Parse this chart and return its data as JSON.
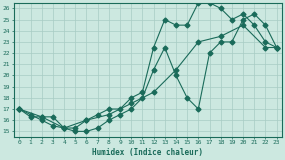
{
  "xlabel": "Humidex (Indice chaleur)",
  "bg_color": "#cce8e0",
  "line_color": "#1a6b5a",
  "grid_color": "#a8ccc4",
  "xlim": [
    -0.5,
    23.5
  ],
  "ylim": [
    14.5,
    26.5
  ],
  "xticks": [
    0,
    1,
    2,
    3,
    4,
    5,
    6,
    7,
    8,
    9,
    10,
    11,
    12,
    13,
    14,
    15,
    16,
    17,
    18,
    19,
    20,
    21,
    22,
    23
  ],
  "yticks": [
    15,
    16,
    17,
    18,
    19,
    20,
    21,
    22,
    23,
    24,
    25,
    26
  ],
  "curve1_x": [
    0,
    1,
    2,
    3,
    4,
    5,
    6,
    7,
    8,
    9,
    10,
    11,
    12,
    13,
    14,
    15,
    16,
    17,
    18,
    19,
    20,
    21,
    22,
    23
  ],
  "curve1_y": [
    17,
    16.3,
    16.3,
    16.3,
    15.3,
    15,
    15,
    15.3,
    16,
    16.5,
    17,
    18,
    20.5,
    22.5,
    20,
    18,
    17,
    22,
    23,
    23,
    25,
    25.5,
    24.5,
    22.5
  ],
  "curve2_x": [
    0,
    1,
    2,
    3,
    4,
    5,
    6,
    7,
    8,
    9,
    10,
    11,
    12,
    13,
    14,
    15,
    16,
    17,
    18,
    19,
    20,
    21,
    22,
    23
  ],
  "curve2_y": [
    17,
    16.5,
    16,
    15.5,
    15.3,
    15.3,
    16,
    16.5,
    17,
    17,
    18,
    18.5,
    22.5,
    25,
    24.5,
    24.5,
    26.5,
    26.5,
    26,
    25,
    25.5,
    24.5,
    23,
    22.5
  ],
  "curve3_x": [
    0,
    2,
    4,
    6,
    8,
    10,
    12,
    14,
    16,
    18,
    20,
    22,
    23
  ],
  "curve3_y": [
    17,
    16.3,
    15.3,
    16,
    16.5,
    17.5,
    18.5,
    20.5,
    23,
    23.5,
    24.5,
    22.5,
    22.5
  ]
}
